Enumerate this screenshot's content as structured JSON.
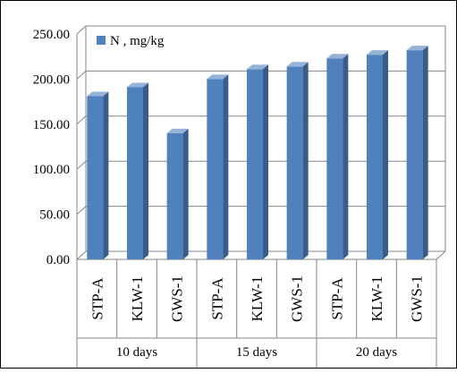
{
  "chart_data": {
    "type": "bar",
    "title": "",
    "xlabel": "",
    "ylabel": "",
    "categories": [
      {
        "group": "10 days",
        "label": "STP-A"
      },
      {
        "group": "10 days",
        "label": "KLW-1"
      },
      {
        "group": "10 days",
        "label": "GWS-1"
      },
      {
        "group": "15 days",
        "label": "STP-A"
      },
      {
        "group": "15 days",
        "label": "KLW-1"
      },
      {
        "group": "15 days",
        "label": "GWS-1"
      },
      {
        "group": "20 days",
        "label": "STP-A"
      },
      {
        "group": "20 days",
        "label": "KLW-1"
      },
      {
        "group": "20 days",
        "label": "GWS-1"
      }
    ],
    "groups": [
      "10 days",
      "15 days",
      "20 days"
    ],
    "series": [
      {
        "name": "N , mg/kg",
        "values": [
          181,
          191,
          140,
          200,
          211,
          214,
          223,
          227,
          232
        ]
      }
    ],
    "ylim": [
      0,
      250
    ],
    "ytick_labels": [
      "0.00",
      "50.00",
      "100.00",
      "150.00",
      "200.00",
      "250.00"
    ],
    "grid": true,
    "legend_position": "top-left",
    "bar_style": "3d",
    "colors": {
      "bar_front": "#4f81bd",
      "bar_side": "#385d8a",
      "bar_top": "#95b3d7",
      "grid": "#868686",
      "axis": "#868686",
      "frame": "#000000"
    }
  }
}
